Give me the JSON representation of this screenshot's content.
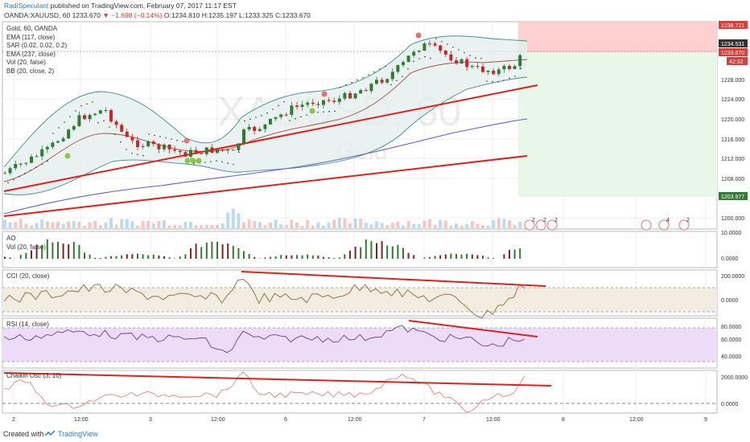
{
  "header": {
    "author": "RadiSpeculant",
    "published": "published on TradingView.com, February 07, 2017 11:17 EST",
    "symbol": "OANDA:XAUUSD, 60",
    "last": "1233.670",
    "change": "▼ −1.698 (−0.14%)",
    "open_label": "O:",
    "open": "1234.810",
    "high_label": "H:",
    "high": "1235.197",
    "low_label": "L:",
    "low": "1233.325",
    "close_label": "C:",
    "close": "1233.670"
  },
  "main_pane": {
    "title": "Gold, 60, OANDA",
    "indicators": [
      "EMA (117, close)",
      "SAR (0.02, 0.02, 0.2)",
      "EMA (237, close)",
      "Vol (20, false)",
      "BB (20, close, 2)"
    ],
    "watermark_symbol": "XAUUSD, 60",
    "watermark_name": "Gold",
    "price_axis": [
      "1228.000",
      "1224.000",
      "1220.000",
      "1216.000",
      "1212.000",
      "1208.000",
      "1200.000"
    ],
    "price_tags": [
      {
        "text": "1238.721",
        "color": "#e53935"
      },
      {
        "text": "1234.531",
        "color": "#333333"
      },
      {
        "text": "1233.670",
        "color": "#e53935"
      },
      {
        "text": "42:32",
        "color": "#e53935"
      },
      {
        "text": "1203.977",
        "color": "#2e7d32"
      }
    ]
  },
  "ao_pane": {
    "labels": [
      "AO",
      "Vol (20, false)"
    ],
    "axis": [
      "10.0000",
      "0.0000"
    ]
  },
  "cci_pane": {
    "label": "CCI (20, close)",
    "axis": [
      "200.0000",
      "0.0000"
    ]
  },
  "rsi_pane": {
    "label": "RSI (14, close)",
    "axis": [
      "80.0000",
      "60.0000",
      "40.0000"
    ]
  },
  "chaikin_pane": {
    "label": "Chaikin Osc (3, 10)",
    "axis": [
      "2000.0000",
      "0.0000"
    ]
  },
  "time_axis": [
    "2",
    "12:00",
    "3",
    "12:00",
    "6",
    "12:00",
    "7",
    "12:00",
    "8",
    "12:00",
    "9"
  ],
  "event_badges": [
    "2",
    "2",
    "2",
    "4",
    "2"
  ],
  "colors": {
    "up": "#2e7d32",
    "down": "#c62828",
    "trend": "#e0201b",
    "bb": "#3b8f8a",
    "ema117": "#8c4a4a",
    "ema237": "#6a5acd",
    "rsi_fill": "#e9d6f7",
    "cci_fill": "#f3ece0",
    "target_zone": "#ffd0d0",
    "stop_zone": "#e6f5e6"
  },
  "footer": {
    "created": "Created with",
    "brand": "TradingView"
  }
}
